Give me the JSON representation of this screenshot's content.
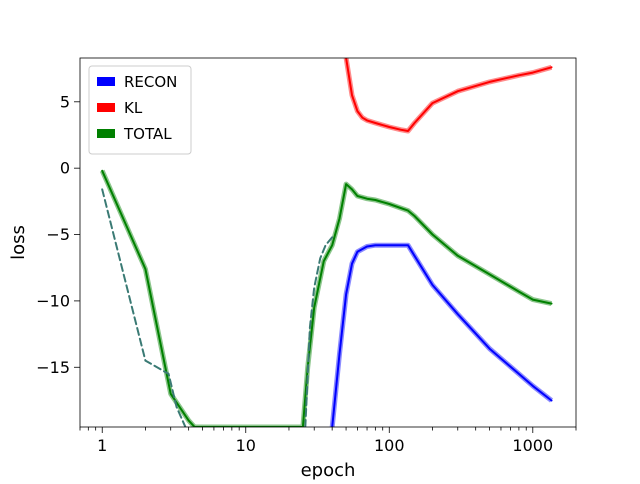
{
  "chart_data": {
    "type": "line",
    "title": "",
    "xlabel": "epoch",
    "ylabel": "loss",
    "xscale": "log",
    "xlim": [
      0.7,
      2000
    ],
    "ylim": [
      -19.5,
      8.3
    ],
    "grid": false,
    "legend_position": "top-left",
    "x_ticks": [
      {
        "value": 1,
        "label": "1"
      },
      {
        "value": 10,
        "label": "10"
      },
      {
        "value": 100,
        "label": "100"
      },
      {
        "value": 1000,
        "label": "1000"
      }
    ],
    "y_ticks": [
      {
        "value": 5,
        "label": "5"
      },
      {
        "value": 0,
        "label": "0"
      },
      {
        "value": -5,
        "label": "−5"
      },
      {
        "value": -10,
        "label": "−10"
      },
      {
        "value": -15,
        "label": "−15"
      }
    ],
    "series": [
      {
        "name": "RECON",
        "color": "#0000ff",
        "line_style": "solid",
        "x": [
          40,
          45,
          50,
          55,
          60,
          70,
          80,
          100,
          120,
          135,
          150,
          200,
          300,
          500,
          800,
          1000,
          1350
        ],
        "y": [
          -19.5,
          -14.0,
          -9.5,
          -7.2,
          -6.3,
          -5.9,
          -5.8,
          -5.8,
          -5.8,
          -5.8,
          -6.6,
          -8.8,
          -11.0,
          -13.6,
          -15.5,
          -16.4,
          -17.5
        ]
      },
      {
        "name": "KL",
        "color": "#ff0000",
        "line_style": "solid",
        "x": [
          50,
          55,
          60,
          65,
          70,
          80,
          100,
          120,
          135,
          150,
          200,
          300,
          500,
          800,
          1000,
          1350
        ],
        "y": [
          8.3,
          5.5,
          4.3,
          3.8,
          3.6,
          3.4,
          3.1,
          2.9,
          2.8,
          3.4,
          4.9,
          5.8,
          6.5,
          7.0,
          7.2,
          7.6
        ]
      },
      {
        "name": "TOTAL",
        "color": "#008000",
        "line_style": "solid",
        "x": [
          1,
          2,
          3,
          4,
          4.4,
          25,
          27,
          30,
          35,
          40,
          45,
          50,
          55,
          60,
          70,
          80,
          100,
          120,
          135,
          150,
          200,
          300,
          500,
          800,
          1000,
          1350
        ],
        "y": [
          -0.2,
          -7.6,
          -17.0,
          -19.0,
          -19.5,
          -19.5,
          -15.0,
          -10.5,
          -7.0,
          -5.8,
          -3.8,
          -1.2,
          -1.6,
          -2.1,
          -2.3,
          -2.4,
          -2.7,
          -3.0,
          -3.2,
          -3.6,
          -5.0,
          -6.6,
          -8.0,
          -9.3,
          -9.9,
          -10.2
        ]
      },
      {
        "name": "",
        "color": "#3a7a74",
        "line_style": "dashed",
        "x": [
          1,
          2,
          2.9,
          3.3,
          3.8
        ],
        "y": [
          -1.6,
          -14.5,
          -15.5,
          -18.0,
          -19.5
        ]
      },
      {
        "name": "",
        "color": "#3a7a74",
        "line_style": "dashed",
        "x": [
          26,
          28,
          30,
          33,
          36,
          40
        ],
        "y": [
          -19.5,
          -12.0,
          -9.0,
          -6.8,
          -5.8,
          -5.2
        ]
      }
    ]
  }
}
